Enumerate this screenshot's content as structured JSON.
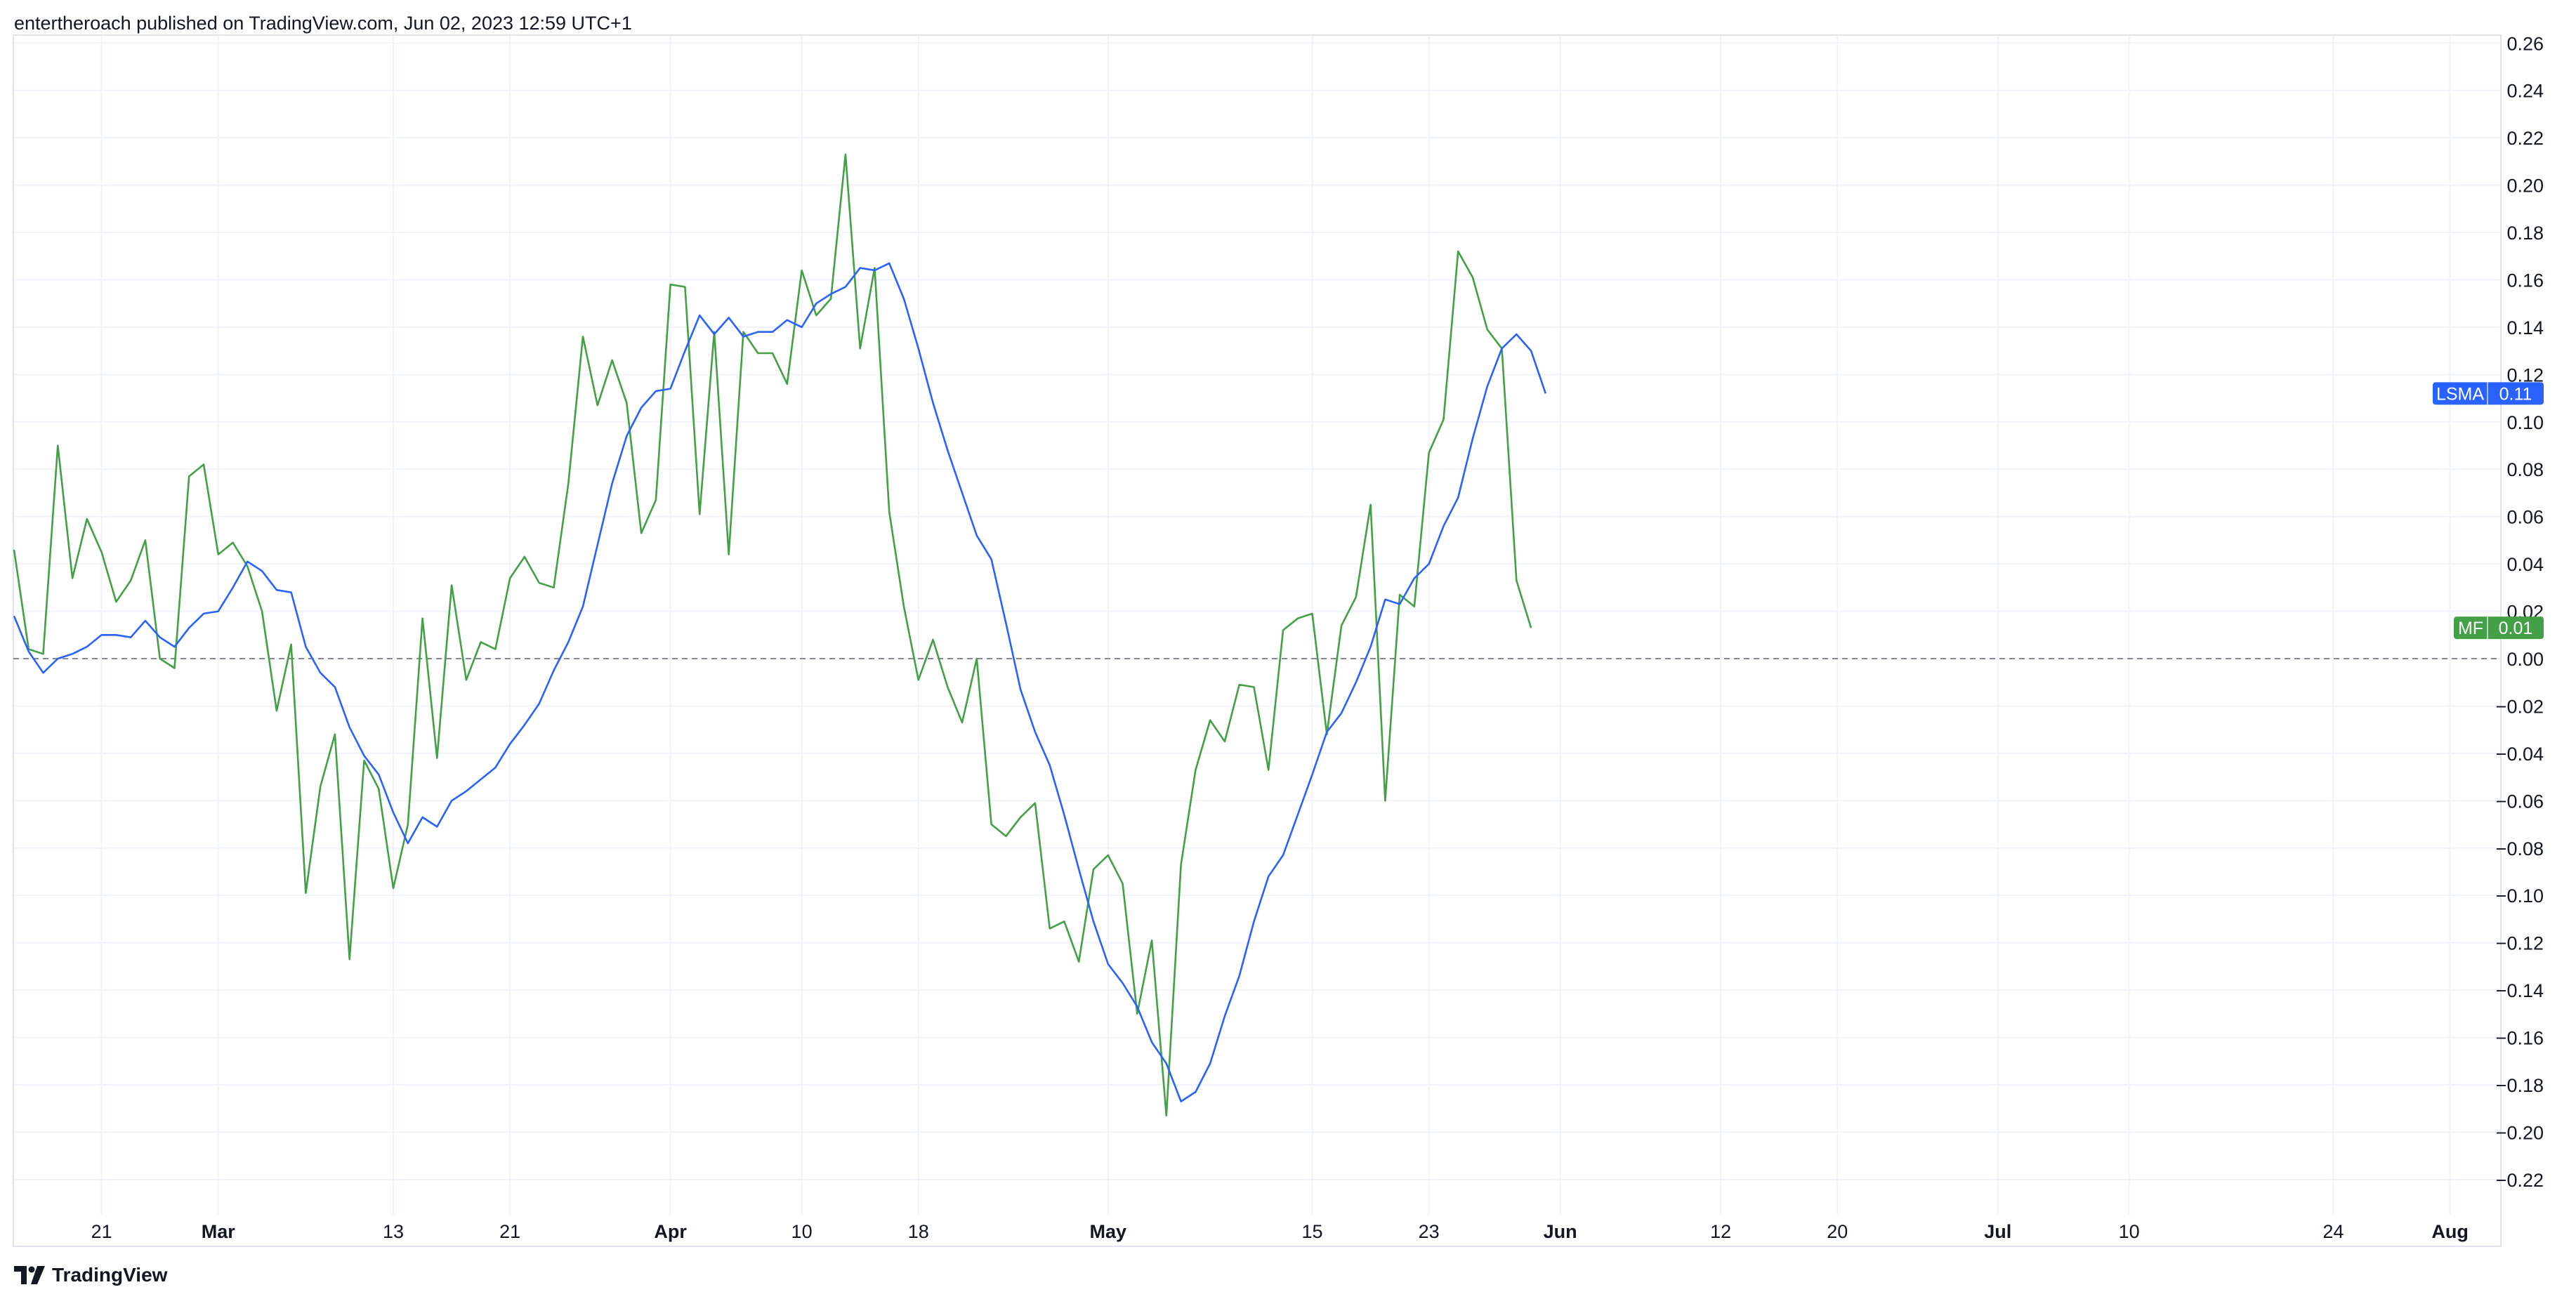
{
  "header": {
    "text": "entertheroach published on TradingView.com, Jun 02, 2023 12:59 UTC+1"
  },
  "footer": {
    "brand": "TradingView",
    "logo_icon": "tradingview-logo-icon"
  },
  "chart_data": {
    "type": "line",
    "x_start": "2023-02-15",
    "x_range": [
      "2023-02-15",
      "2023-08-15"
    ],
    "ylim": [
      -0.23,
      0.265
    ],
    "y_ticks": [
      0.26,
      0.24,
      0.22,
      0.2,
      0.18,
      0.16,
      0.14,
      0.12,
      0.1,
      0.08,
      0.06,
      0.04,
      0.02,
      0.0,
      -0.02,
      -0.04,
      -0.06,
      -0.08,
      -0.1,
      -0.12,
      -0.14,
      -0.16,
      -0.18,
      -0.2,
      -0.22
    ],
    "y_tick_labels": [
      "0.26",
      "0.24",
      "0.22",
      "0.20",
      "0.18",
      "0.16",
      "0.14",
      "0.12",
      "0.10",
      "0.08",
      "0.06",
      "0.04",
      "0.02",
      "0.00",
      "−0.02",
      "−0.04",
      "−0.06",
      "−0.08",
      "−0.10",
      "−0.12",
      "−0.14",
      "−0.16",
      "−0.18",
      "−0.20",
      "−0.22"
    ],
    "x_ticks": [
      {
        "label": "21",
        "date": "2023-02-21",
        "major": false
      },
      {
        "label": "Mar",
        "date": "2023-03-01",
        "major": true
      },
      {
        "label": "13",
        "date": "2023-03-13",
        "major": false
      },
      {
        "label": "21",
        "date": "2023-03-21",
        "major": false
      },
      {
        "label": "Apr",
        "date": "2023-04-01",
        "major": true
      },
      {
        "label": "10",
        "date": "2023-04-10",
        "major": false
      },
      {
        "label": "18",
        "date": "2023-04-18",
        "major": false
      },
      {
        "label": "May",
        "date": "2023-05-01",
        "major": true
      },
      {
        "label": "15",
        "date": "2023-05-15",
        "major": false
      },
      {
        "label": "23",
        "date": "2023-05-23",
        "major": false
      },
      {
        "label": "Jun",
        "date": "2023-06-01",
        "major": true
      },
      {
        "label": "12",
        "date": "2023-06-12",
        "major": false
      },
      {
        "label": "20",
        "date": "2023-06-20",
        "major": false
      },
      {
        "label": "Jul",
        "date": "2023-07-01",
        "major": true
      },
      {
        "label": "10",
        "date": "2023-07-10",
        "major": false
      },
      {
        "label": "24",
        "date": "2023-07-24",
        "major": false
      },
      {
        "label": "Aug",
        "date": "2023-08-01",
        "major": true
      }
    ],
    "zero_line": 0,
    "grid": true,
    "series": [
      {
        "name": "MF",
        "color": "#43a047",
        "last_value_label": "0.01",
        "last_value": 0.013,
        "points": [
          [
            "2023-02-15",
            0.046
          ],
          [
            "2023-02-16",
            0.004
          ],
          [
            "2023-02-17",
            0.002
          ],
          [
            "2023-02-18",
            0.09
          ],
          [
            "2023-02-19",
            0.034
          ],
          [
            "2023-02-20",
            0.059
          ],
          [
            "2023-02-21",
            0.045
          ],
          [
            "2023-02-22",
            0.024
          ],
          [
            "2023-02-23",
            0.033
          ],
          [
            "2023-02-24",
            0.05
          ],
          [
            "2023-02-25",
            0.0
          ],
          [
            "2023-02-26",
            -0.004
          ],
          [
            "2023-02-27",
            0.077
          ],
          [
            "2023-02-28",
            0.082
          ],
          [
            "2023-03-01",
            0.044
          ],
          [
            "2023-03-02",
            0.049
          ],
          [
            "2023-03-03",
            0.039
          ],
          [
            "2023-03-04",
            0.02
          ],
          [
            "2023-03-05",
            -0.022
          ],
          [
            "2023-03-06",
            0.006
          ],
          [
            "2023-03-07",
            -0.099
          ],
          [
            "2023-03-08",
            -0.054
          ],
          [
            "2023-03-09",
            -0.032
          ],
          [
            "2023-03-10",
            -0.127
          ],
          [
            "2023-03-11",
            -0.043
          ],
          [
            "2023-03-12",
            -0.055
          ],
          [
            "2023-03-13",
            -0.097
          ],
          [
            "2023-03-14",
            -0.07
          ],
          [
            "2023-03-15",
            0.017
          ],
          [
            "2023-03-16",
            -0.042
          ],
          [
            "2023-03-17",
            0.031
          ],
          [
            "2023-03-18",
            -0.009
          ],
          [
            "2023-03-19",
            0.007
          ],
          [
            "2023-03-20",
            0.004
          ],
          [
            "2023-03-21",
            0.034
          ],
          [
            "2023-03-22",
            0.043
          ],
          [
            "2023-03-23",
            0.032
          ],
          [
            "2023-03-24",
            0.03
          ],
          [
            "2023-03-25",
            0.074
          ],
          [
            "2023-03-26",
            0.136
          ],
          [
            "2023-03-27",
            0.107
          ],
          [
            "2023-03-28",
            0.126
          ],
          [
            "2023-03-29",
            0.108
          ],
          [
            "2023-03-30",
            0.053
          ],
          [
            "2023-03-31",
            0.067
          ],
          [
            "2023-04-01",
            0.158
          ],
          [
            "2023-04-02",
            0.157
          ],
          [
            "2023-04-03",
            0.061
          ],
          [
            "2023-04-04",
            0.138
          ],
          [
            "2023-04-05",
            0.044
          ],
          [
            "2023-04-06",
            0.138
          ],
          [
            "2023-04-07",
            0.129
          ],
          [
            "2023-04-08",
            0.129
          ],
          [
            "2023-04-09",
            0.116
          ],
          [
            "2023-04-10",
            0.164
          ],
          [
            "2023-04-11",
            0.145
          ],
          [
            "2023-04-12",
            0.152
          ],
          [
            "2023-04-13",
            0.213
          ],
          [
            "2023-04-14",
            0.131
          ],
          [
            "2023-04-15",
            0.165
          ],
          [
            "2023-04-16",
            0.062
          ],
          [
            "2023-04-17",
            0.022
          ],
          [
            "2023-04-18",
            -0.009
          ],
          [
            "2023-04-19",
            0.008
          ],
          [
            "2023-04-20",
            -0.012
          ],
          [
            "2023-04-21",
            -0.027
          ],
          [
            "2023-04-22",
            0.0
          ],
          [
            "2023-04-23",
            -0.07
          ],
          [
            "2023-04-24",
            -0.075
          ],
          [
            "2023-04-25",
            -0.067
          ],
          [
            "2023-04-26",
            -0.061
          ],
          [
            "2023-04-27",
            -0.114
          ],
          [
            "2023-04-28",
            -0.111
          ],
          [
            "2023-04-29",
            -0.128
          ],
          [
            "2023-04-30",
            -0.089
          ],
          [
            "2023-05-01",
            -0.083
          ],
          [
            "2023-05-02",
            -0.095
          ],
          [
            "2023-05-03",
            -0.15
          ],
          [
            "2023-05-04",
            -0.119
          ],
          [
            "2023-05-05",
            -0.193
          ],
          [
            "2023-05-06",
            -0.087
          ],
          [
            "2023-05-07",
            -0.047
          ],
          [
            "2023-05-08",
            -0.026
          ],
          [
            "2023-05-09",
            -0.035
          ],
          [
            "2023-05-10",
            -0.011
          ],
          [
            "2023-05-11",
            -0.012
          ],
          [
            "2023-05-12",
            -0.047
          ],
          [
            "2023-05-13",
            0.012
          ],
          [
            "2023-05-14",
            0.017
          ],
          [
            "2023-05-15",
            0.019
          ],
          [
            "2023-05-16",
            -0.032
          ],
          [
            "2023-05-17",
            0.014
          ],
          [
            "2023-05-18",
            0.026
          ],
          [
            "2023-05-19",
            0.065
          ],
          [
            "2023-05-20",
            -0.06
          ],
          [
            "2023-05-21",
            0.027
          ],
          [
            "2023-05-22",
            0.022
          ],
          [
            "2023-05-23",
            0.087
          ],
          [
            "2023-05-24",
            0.101
          ],
          [
            "2023-05-25",
            0.172
          ],
          [
            "2023-05-26",
            0.161
          ],
          [
            "2023-05-27",
            0.139
          ],
          [
            "2023-05-28",
            0.131
          ],
          [
            "2023-05-29",
            0.033
          ],
          [
            "2023-05-30",
            0.013
          ]
        ]
      },
      {
        "name": "LSMA",
        "color": "#2962ff",
        "last_value_label": "0.11",
        "last_value": 0.112,
        "points": [
          [
            "2023-02-15",
            0.018
          ],
          [
            "2023-02-16",
            0.003
          ],
          [
            "2023-02-17",
            -0.006
          ],
          [
            "2023-02-18",
            0.0
          ],
          [
            "2023-02-19",
            0.002
          ],
          [
            "2023-02-20",
            0.005
          ],
          [
            "2023-02-21",
            0.01
          ],
          [
            "2023-02-22",
            0.01
          ],
          [
            "2023-02-23",
            0.009
          ],
          [
            "2023-02-24",
            0.016
          ],
          [
            "2023-02-25",
            0.009
          ],
          [
            "2023-02-26",
            0.005
          ],
          [
            "2023-02-27",
            0.013
          ],
          [
            "2023-02-28",
            0.019
          ],
          [
            "2023-03-01",
            0.02
          ],
          [
            "2023-03-02",
            0.03
          ],
          [
            "2023-03-03",
            0.041
          ],
          [
            "2023-03-04",
            0.037
          ],
          [
            "2023-03-05",
            0.029
          ],
          [
            "2023-03-06",
            0.028
          ],
          [
            "2023-03-07",
            0.005
          ],
          [
            "2023-03-08",
            -0.006
          ],
          [
            "2023-03-09",
            -0.012
          ],
          [
            "2023-03-10",
            -0.029
          ],
          [
            "2023-03-11",
            -0.041
          ],
          [
            "2023-03-12",
            -0.049
          ],
          [
            "2023-03-13",
            -0.065
          ],
          [
            "2023-03-14",
            -0.078
          ],
          [
            "2023-03-15",
            -0.067
          ],
          [
            "2023-03-16",
            -0.071
          ],
          [
            "2023-03-17",
            -0.06
          ],
          [
            "2023-03-18",
            -0.056
          ],
          [
            "2023-03-19",
            -0.051
          ],
          [
            "2023-03-20",
            -0.046
          ],
          [
            "2023-03-21",
            -0.036
          ],
          [
            "2023-03-22",
            -0.028
          ],
          [
            "2023-03-23",
            -0.019
          ],
          [
            "2023-03-24",
            -0.005
          ],
          [
            "2023-03-25",
            0.007
          ],
          [
            "2023-03-26",
            0.022
          ],
          [
            "2023-03-27",
            0.048
          ],
          [
            "2023-03-28",
            0.074
          ],
          [
            "2023-03-29",
            0.094
          ],
          [
            "2023-03-30",
            0.106
          ],
          [
            "2023-03-31",
            0.113
          ],
          [
            "2023-04-01",
            0.114
          ],
          [
            "2023-04-02",
            0.13
          ],
          [
            "2023-04-03",
            0.145
          ],
          [
            "2023-04-04",
            0.137
          ],
          [
            "2023-04-05",
            0.144
          ],
          [
            "2023-04-06",
            0.136
          ],
          [
            "2023-04-07",
            0.138
          ],
          [
            "2023-04-08",
            0.138
          ],
          [
            "2023-04-09",
            0.143
          ],
          [
            "2023-04-10",
            0.14
          ],
          [
            "2023-04-11",
            0.15
          ],
          [
            "2023-04-12",
            0.154
          ],
          [
            "2023-04-13",
            0.157
          ],
          [
            "2023-04-14",
            0.165
          ],
          [
            "2023-04-15",
            0.164
          ],
          [
            "2023-04-16",
            0.167
          ],
          [
            "2023-04-17",
            0.152
          ],
          [
            "2023-04-18",
            0.131
          ],
          [
            "2023-04-19",
            0.108
          ],
          [
            "2023-04-20",
            0.088
          ],
          [
            "2023-04-21",
            0.07
          ],
          [
            "2023-04-22",
            0.052
          ],
          [
            "2023-04-23",
            0.042
          ],
          [
            "2023-04-24",
            0.015
          ],
          [
            "2023-04-25",
            -0.013
          ],
          [
            "2023-04-26",
            -0.031
          ],
          [
            "2023-04-27",
            -0.045
          ],
          [
            "2023-04-28",
            -0.066
          ],
          [
            "2023-04-29",
            -0.089
          ],
          [
            "2023-04-30",
            -0.111
          ],
          [
            "2023-05-01",
            -0.129
          ],
          [
            "2023-05-02",
            -0.137
          ],
          [
            "2023-05-03",
            -0.147
          ],
          [
            "2023-05-04",
            -0.162
          ],
          [
            "2023-05-05",
            -0.171
          ],
          [
            "2023-05-06",
            -0.187
          ],
          [
            "2023-05-07",
            -0.183
          ],
          [
            "2023-05-08",
            -0.171
          ],
          [
            "2023-05-09",
            -0.151
          ],
          [
            "2023-05-10",
            -0.134
          ],
          [
            "2023-05-11",
            -0.111
          ],
          [
            "2023-05-12",
            -0.092
          ],
          [
            "2023-05-13",
            -0.083
          ],
          [
            "2023-05-14",
            -0.066
          ],
          [
            "2023-05-15",
            -0.049
          ],
          [
            "2023-05-16",
            -0.031
          ],
          [
            "2023-05-17",
            -0.023
          ],
          [
            "2023-05-18",
            -0.01
          ],
          [
            "2023-05-19",
            0.005
          ],
          [
            "2023-05-20",
            0.025
          ],
          [
            "2023-05-21",
            0.023
          ],
          [
            "2023-05-22",
            0.034
          ],
          [
            "2023-05-23",
            0.04
          ],
          [
            "2023-05-24",
            0.056
          ],
          [
            "2023-05-25",
            0.068
          ],
          [
            "2023-05-26",
            0.093
          ],
          [
            "2023-05-27",
            0.115
          ],
          [
            "2023-05-28",
            0.131
          ],
          [
            "2023-05-29",
            0.137
          ],
          [
            "2023-05-30",
            0.13
          ],
          [
            "2023-05-31",
            0.112
          ]
        ]
      }
    ]
  }
}
